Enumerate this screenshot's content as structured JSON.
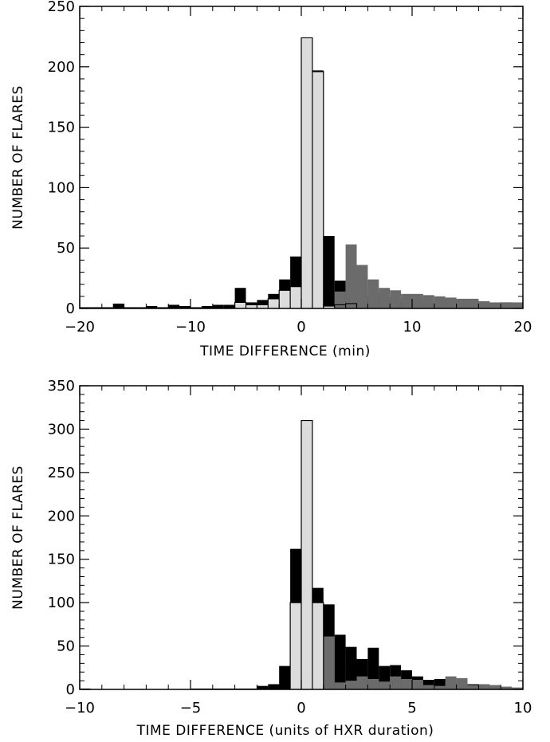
{
  "colors": {
    "total": "#000000",
    "light": "#dcdcdc",
    "dark": "#6b6b6b",
    "axes": "#000000",
    "background": "#ffffff"
  },
  "chart_data": [
    {
      "type": "bar",
      "subtype": "stacked histogram",
      "xlabel": "TIME DIFFERENCE (min)",
      "ylabel": "NUMBER OF FLARES",
      "xlim": [
        -20,
        20
      ],
      "ylim": [
        0,
        250
      ],
      "xticks": [
        -20,
        -10,
        0,
        10,
        20
      ],
      "yticks": [
        0,
        50,
        100,
        150,
        200,
        250
      ],
      "bin_width": 1,
      "x": [
        -20,
        -19,
        -18,
        -17,
        -16,
        -15,
        -14,
        -13,
        -12,
        -11,
        -10,
        -9,
        -8,
        -7,
        -6,
        -5,
        -4,
        -3,
        -2,
        -1,
        0,
        1,
        2,
        3,
        4,
        5,
        6,
        7,
        8,
        9,
        10,
        11,
        12,
        13,
        14,
        15,
        16,
        17,
        18,
        19
      ],
      "series": [
        {
          "role": "total",
          "values": [
            1,
            1,
            1,
            4,
            1,
            1,
            2,
            1,
            3,
            2,
            1,
            2,
            3,
            3,
            17,
            5,
            7,
            12,
            24,
            43,
            224,
            197,
            60,
            23,
            14,
            11,
            13,
            10,
            8,
            6,
            5,
            5,
            5,
            8,
            6,
            7,
            5,
            4,
            5,
            4
          ]
        },
        {
          "role": "light",
          "values": [
            0,
            0,
            0,
            0,
            0,
            0,
            0,
            0,
            0,
            0,
            0,
            0,
            0,
            0,
            5,
            3,
            3,
            8,
            15,
            18,
            224,
            196,
            2,
            3,
            4,
            0,
            0,
            0,
            0,
            0,
            0,
            0,
            0,
            0,
            0,
            0,
            0,
            0,
            0,
            0
          ]
        },
        {
          "role": "dark",
          "values": [
            0,
            0,
            0,
            0,
            0,
            0,
            0,
            0,
            0,
            0,
            0,
            0,
            0,
            0,
            0,
            0,
            0,
            0,
            0,
            0,
            0,
            0,
            0,
            14,
            53,
            36,
            24,
            17,
            15,
            12,
            12,
            11,
            10,
            9,
            8,
            8,
            6,
            5,
            5,
            5
          ]
        }
      ]
    },
    {
      "type": "bar",
      "subtype": "stacked histogram",
      "xlabel": "TIME DIFFERENCE (units of HXR duration)",
      "ylabel": "NUMBER OF FLARES",
      "xlim": [
        -10,
        10
      ],
      "ylim": [
        0,
        350
      ],
      "xticks": [
        -10,
        -5,
        0,
        5,
        10
      ],
      "yticks": [
        0,
        50,
        100,
        150,
        200,
        250,
        300,
        350
      ],
      "bin_width": 0.5,
      "x": [
        -10,
        -9.5,
        -9,
        -8.5,
        -8,
        -7.5,
        -7,
        -6.5,
        -6,
        -5.5,
        -5,
        -4.5,
        -4,
        -3.5,
        -3,
        -2.5,
        -2,
        -1.5,
        -1,
        -0.5,
        0,
        0.5,
        1,
        1.5,
        2,
        2.5,
        3,
        3.5,
        4,
        4.5,
        5,
        5.5,
        6,
        6.5,
        7,
        7.5,
        8,
        8.5,
        9,
        9.5
      ],
      "series": [
        {
          "role": "total",
          "values": [
            1,
            0,
            0,
            0,
            0,
            0,
            0,
            0,
            0,
            0,
            1,
            1,
            1,
            1,
            1,
            1,
            4,
            6,
            27,
            162,
            310,
            117,
            98,
            63,
            49,
            35,
            48,
            27,
            28,
            22,
            15,
            11,
            12,
            12,
            8,
            6,
            5,
            4,
            3,
            2
          ]
        },
        {
          "role": "light",
          "values": [
            0,
            0,
            0,
            0,
            0,
            0,
            0,
            0,
            0,
            0,
            0,
            0,
            0,
            0,
            0,
            0,
            0,
            0,
            0,
            100,
            310,
            100,
            0,
            0,
            0,
            0,
            0,
            0,
            0,
            0,
            0,
            0,
            0,
            0,
            0,
            0,
            0,
            0,
            0,
            0
          ]
        },
        {
          "role": "dark",
          "values": [
            0,
            0,
            0,
            0,
            0,
            0,
            0,
            0,
            0,
            0,
            0,
            0,
            0,
            0,
            0,
            0,
            0,
            0,
            0,
            0,
            0,
            0,
            61,
            8,
            10,
            15,
            12,
            9,
            15,
            12,
            11,
            5,
            4,
            15,
            13,
            5,
            6,
            5,
            3,
            2
          ]
        }
      ]
    }
  ]
}
